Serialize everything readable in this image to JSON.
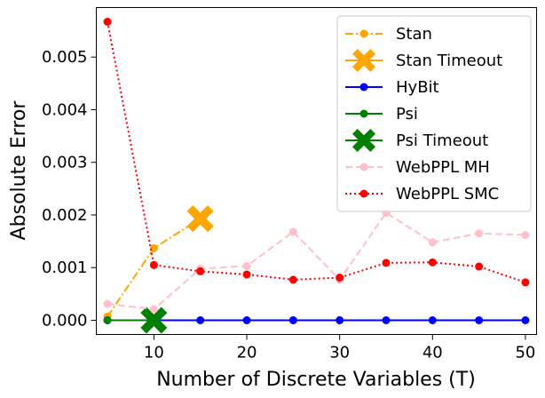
{
  "chart_data": {
    "type": "line",
    "xlabel": "Number of Discrete Variables (T)",
    "ylabel": "Absolute Error",
    "xlim": [
      3.8,
      51.2
    ],
    "ylim": [
      -0.00027,
      0.00594
    ],
    "xticks": [
      10,
      20,
      30,
      40,
      50
    ],
    "xtick_labels": [
      "10",
      "20",
      "30",
      "40",
      "50"
    ],
    "yticks": [
      0.0,
      0.001,
      0.002,
      0.003,
      0.004,
      0.005
    ],
    "ytick_labels": [
      "0.000",
      "0.001",
      "0.002",
      "0.003",
      "0.004",
      "0.005"
    ],
    "grid": false,
    "legend_position": "upper right",
    "series": [
      {
        "name": "Stan",
        "color": "#ffa500",
        "dash": "dashdot",
        "marker": "circle",
        "x": [
          5,
          10,
          15
        ],
        "y": [
          7e-05,
          0.00137,
          0.00193
        ]
      },
      {
        "name": "Stan Timeout",
        "color": "#ffa500",
        "dash": "solid",
        "marker": "x",
        "x": [
          15
        ],
        "y": [
          0.00193
        ]
      },
      {
        "name": "HyBit",
        "color": "#0000ff",
        "dash": "solid",
        "marker": "circle",
        "x": [
          5,
          10,
          15,
          20,
          25,
          30,
          35,
          40,
          45,
          50
        ],
        "y": [
          0,
          0,
          0,
          0,
          0,
          0,
          0,
          0,
          0,
          0
        ]
      },
      {
        "name": "Psi",
        "color": "#008000",
        "dash": "solid",
        "marker": "circle",
        "x": [
          5,
          10
        ],
        "y": [
          0,
          0
        ]
      },
      {
        "name": "Psi Timeout",
        "color": "#008000",
        "dash": "solid",
        "marker": "x",
        "x": [
          10
        ],
        "y": [
          0
        ]
      },
      {
        "name": "WebPPL MH",
        "color": "#ffc0cb",
        "dash": "dashed",
        "marker": "circle",
        "x": [
          5,
          10,
          15,
          20,
          25,
          30,
          35,
          40,
          45,
          50
        ],
        "y": [
          0.00031,
          0.00021,
          0.00098,
          0.00103,
          0.00168,
          0.00077,
          0.00204,
          0.00148,
          0.00165,
          0.00162
        ]
      },
      {
        "name": "WebPPL SMC",
        "color": "#ff0000",
        "dash": "dotted",
        "marker": "circle",
        "x": [
          5,
          10,
          15,
          20,
          25,
          30,
          35,
          40,
          45,
          50
        ],
        "y": [
          0.00567,
          0.00105,
          0.00093,
          0.00087,
          0.00077,
          0.00081,
          0.00109,
          0.0011,
          0.00102,
          0.00072
        ]
      }
    ]
  }
}
